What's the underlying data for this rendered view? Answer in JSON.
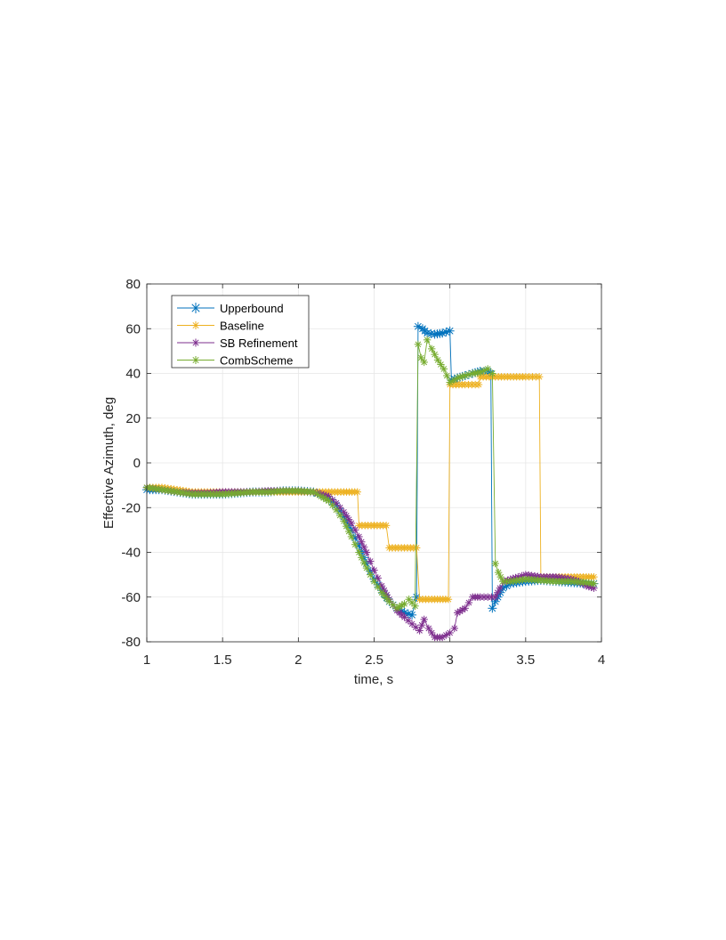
{
  "chart_data": {
    "type": "line",
    "xlabel": "time, s",
    "ylabel": "Effective Azimuth, deg",
    "xlim": [
      1,
      4
    ],
    "ylim": [
      -80,
      80
    ],
    "xticks": [
      1,
      1.5,
      2,
      2.5,
      3,
      3.5,
      4
    ],
    "xtick_labels": [
      "1",
      "1.5",
      "2",
      "2.5",
      "3",
      "3.5",
      "4"
    ],
    "yticks": [
      -80,
      -60,
      -40,
      -20,
      0,
      20,
      40,
      60,
      80
    ],
    "ytick_labels": [
      "-80",
      "-60",
      "-40",
      "-20",
      "0",
      "20",
      "40",
      "60",
      "80"
    ],
    "grid": true,
    "legend_position": "top-left",
    "marker": "asterisk",
    "series": [
      {
        "name": "Upperbound",
        "color": "#0072BD",
        "points": [
          [
            1.0,
            -12
          ],
          [
            1.1,
            -12
          ],
          [
            1.2,
            -13
          ],
          [
            1.3,
            -14
          ],
          [
            1.4,
            -14
          ],
          [
            1.5,
            -14
          ],
          [
            1.6,
            -13.5
          ],
          [
            1.7,
            -13
          ],
          [
            1.8,
            -13
          ],
          [
            1.9,
            -12.5
          ],
          [
            2.0,
            -12.5
          ],
          [
            2.1,
            -13
          ],
          [
            2.15,
            -14
          ],
          [
            2.2,
            -16
          ],
          [
            2.25,
            -19
          ],
          [
            2.3,
            -24
          ],
          [
            2.35,
            -30
          ],
          [
            2.4,
            -37
          ],
          [
            2.45,
            -45
          ],
          [
            2.5,
            -52
          ],
          [
            2.55,
            -57
          ],
          [
            2.6,
            -62
          ],
          [
            2.65,
            -65
          ],
          [
            2.7,
            -67
          ],
          [
            2.75,
            -68
          ],
          [
            2.78,
            -60
          ],
          [
            2.79,
            61
          ],
          [
            2.82,
            60
          ],
          [
            2.85,
            58
          ],
          [
            2.9,
            57.5
          ],
          [
            2.95,
            58
          ],
          [
            3.0,
            59
          ],
          [
            3.01,
            37
          ],
          [
            3.05,
            38
          ],
          [
            3.1,
            39
          ],
          [
            3.15,
            40
          ],
          [
            3.2,
            41
          ],
          [
            3.25,
            41
          ],
          [
            3.27,
            40
          ],
          [
            3.28,
            -65
          ],
          [
            3.3,
            -62
          ],
          [
            3.35,
            -56
          ],
          [
            3.4,
            -54
          ],
          [
            3.5,
            -53
          ],
          [
            3.6,
            -52.5
          ],
          [
            3.7,
            -53
          ],
          [
            3.8,
            -53.5
          ],
          [
            3.9,
            -54
          ],
          [
            3.95,
            -54
          ]
        ]
      },
      {
        "name": "Baseline",
        "color": "#EDB120",
        "points": [
          [
            1.0,
            -11
          ],
          [
            1.1,
            -11
          ],
          [
            1.2,
            -12
          ],
          [
            1.3,
            -13
          ],
          [
            1.4,
            -13
          ],
          [
            1.5,
            -13
          ],
          [
            1.6,
            -13
          ],
          [
            1.7,
            -13
          ],
          [
            1.8,
            -13
          ],
          [
            1.9,
            -13
          ],
          [
            2.0,
            -13
          ],
          [
            2.1,
            -13
          ],
          [
            2.2,
            -13
          ],
          [
            2.3,
            -13
          ],
          [
            2.39,
            -13
          ],
          [
            2.4,
            -28
          ],
          [
            2.5,
            -28
          ],
          [
            2.58,
            -28
          ],
          [
            2.6,
            -38
          ],
          [
            2.7,
            -38
          ],
          [
            2.78,
            -38
          ],
          [
            2.8,
            -61
          ],
          [
            2.9,
            -61
          ],
          [
            2.99,
            -61
          ],
          [
            3.0,
            35
          ],
          [
            3.1,
            35
          ],
          [
            3.19,
            35
          ],
          [
            3.2,
            38.5
          ],
          [
            3.3,
            38.5
          ],
          [
            3.4,
            38.5
          ],
          [
            3.5,
            38.5
          ],
          [
            3.59,
            38.5
          ],
          [
            3.6,
            -51
          ],
          [
            3.7,
            -51
          ],
          [
            3.8,
            -51
          ],
          [
            3.9,
            -51
          ],
          [
            3.95,
            -51
          ]
        ]
      },
      {
        "name": "SB Refinement",
        "color": "#7E2F8E",
        "points": [
          [
            1.0,
            -11
          ],
          [
            1.1,
            -12
          ],
          [
            1.2,
            -13
          ],
          [
            1.3,
            -13.5
          ],
          [
            1.4,
            -13.5
          ],
          [
            1.5,
            -13
          ],
          [
            1.6,
            -13
          ],
          [
            1.7,
            -13
          ],
          [
            1.8,
            -12.5
          ],
          [
            1.9,
            -12.5
          ],
          [
            2.0,
            -12.5
          ],
          [
            2.1,
            -13
          ],
          [
            2.15,
            -14
          ],
          [
            2.2,
            -15
          ],
          [
            2.25,
            -18
          ],
          [
            2.3,
            -22
          ],
          [
            2.35,
            -27
          ],
          [
            2.4,
            -33
          ],
          [
            2.45,
            -40
          ],
          [
            2.5,
            -48
          ],
          [
            2.55,
            -55
          ],
          [
            2.6,
            -61
          ],
          [
            2.65,
            -66
          ],
          [
            2.7,
            -69
          ],
          [
            2.75,
            -72
          ],
          [
            2.8,
            -75
          ],
          [
            2.83,
            -70
          ],
          [
            2.86,
            -74
          ],
          [
            2.9,
            -78
          ],
          [
            2.95,
            -78
          ],
          [
            3.0,
            -76
          ],
          [
            3.03,
            -74
          ],
          [
            3.05,
            -67
          ],
          [
            3.1,
            -65
          ],
          [
            3.15,
            -60
          ],
          [
            3.2,
            -60
          ],
          [
            3.25,
            -60
          ],
          [
            3.3,
            -60
          ],
          [
            3.33,
            -56
          ],
          [
            3.36,
            -53
          ],
          [
            3.4,
            -52
          ],
          [
            3.45,
            -51
          ],
          [
            3.5,
            -50
          ],
          [
            3.6,
            -51
          ],
          [
            3.7,
            -51
          ],
          [
            3.8,
            -52
          ],
          [
            3.85,
            -53
          ],
          [
            3.9,
            -55
          ],
          [
            3.95,
            -56
          ]
        ]
      },
      {
        "name": "CombScheme",
        "color": "#77AC30",
        "points": [
          [
            1.0,
            -11
          ],
          [
            1.1,
            -12
          ],
          [
            1.2,
            -13
          ],
          [
            1.3,
            -14
          ],
          [
            1.4,
            -14
          ],
          [
            1.5,
            -14
          ],
          [
            1.6,
            -13.5
          ],
          [
            1.7,
            -13
          ],
          [
            1.8,
            -13
          ],
          [
            1.9,
            -12.5
          ],
          [
            2.0,
            -12.5
          ],
          [
            2.1,
            -13
          ],
          [
            2.15,
            -15
          ],
          [
            2.2,
            -17
          ],
          [
            2.25,
            -21
          ],
          [
            2.3,
            -26
          ],
          [
            2.35,
            -33
          ],
          [
            2.4,
            -40
          ],
          [
            2.45,
            -47
          ],
          [
            2.5,
            -53
          ],
          [
            2.55,
            -58
          ],
          [
            2.6,
            -62
          ],
          [
            2.65,
            -65
          ],
          [
            2.7,
            -63
          ],
          [
            2.73,
            -61
          ],
          [
            2.77,
            -64
          ],
          [
            2.79,
            53
          ],
          [
            2.81,
            47
          ],
          [
            2.83,
            45
          ],
          [
            2.85,
            55
          ],
          [
            2.88,
            51
          ],
          [
            2.92,
            46
          ],
          [
            2.96,
            42
          ],
          [
            3.0,
            36
          ],
          [
            3.05,
            38
          ],
          [
            3.1,
            39
          ],
          [
            3.15,
            40
          ],
          [
            3.2,
            40.5
          ],
          [
            3.25,
            42
          ],
          [
            3.28,
            40
          ],
          [
            3.3,
            -45
          ],
          [
            3.32,
            -49
          ],
          [
            3.35,
            -53
          ],
          [
            3.4,
            -53
          ],
          [
            3.5,
            -52
          ],
          [
            3.6,
            -52.5
          ],
          [
            3.7,
            -53
          ],
          [
            3.8,
            -53
          ],
          [
            3.9,
            -53.5
          ],
          [
            3.95,
            -54
          ]
        ]
      }
    ]
  }
}
